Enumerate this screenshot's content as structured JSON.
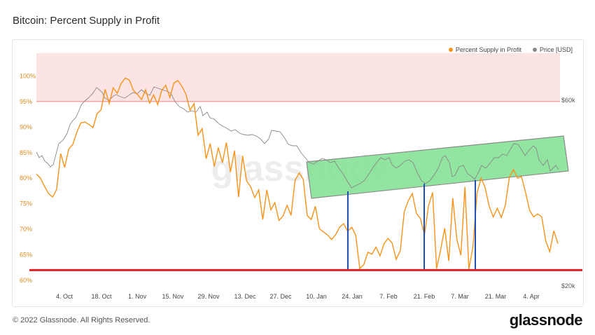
{
  "header": {
    "title": "Bitcoin: Percent Supply in Profit"
  },
  "footer": {
    "copyright": "© 2022 Glassnode. All Rights Reserved.",
    "brand": "glassnode"
  },
  "watermark": "glassnode",
  "colors": {
    "supply": "#f7931a",
    "price": "#888888",
    "top_band": "#fde4e4",
    "top_line": "#f08080",
    "floor_line": "#e02020",
    "channel": "#7fe08f",
    "channel_border": "#8a8a8a",
    "markers": "#1f4fb5"
  },
  "chart_data": {
    "type": "line",
    "title": "Bitcoin: Percent Supply in Profit",
    "series": [
      {
        "name": "Percent Supply in Profit",
        "axis": "left",
        "y": [
          80.8,
          80.0,
          78.4,
          77.0,
          76.3,
          77.8,
          84.8,
          82.1,
          85.7,
          86.6,
          89.0,
          90.8,
          91.0,
          90.5,
          89.9,
          92.6,
          93.4,
          97.4,
          94.6,
          97.7,
          96.6,
          98.6,
          99.6,
          99.2,
          97.2,
          96.4,
          95.4,
          97.3,
          94.7,
          96.3,
          94.4,
          97.2,
          98.2,
          95.8,
          98.6,
          99.1,
          98.0,
          96.4,
          93.3,
          94.6,
          88.4,
          89.7,
          83.8,
          86.8,
          82.3,
          86.0,
          83.0,
          87.0,
          81.2,
          85.4,
          76.3,
          84.4,
          79.5,
          78.3,
          76.2,
          77.7,
          71.9,
          77.7,
          73.8,
          75.2,
          71.7,
          72.6,
          74.7,
          72.7,
          79.6,
          81.0,
          79.8,
          72.7,
          71.9,
          74.5,
          70.1,
          69.5,
          68.9,
          68.0,
          68.9,
          70.4,
          71.1,
          69.6,
          70.4,
          68.8,
          62.3,
          63.1,
          65.5,
          65.1,
          66.5,
          64.8,
          67.2,
          68.2,
          67.3,
          64.1,
          65.8,
          73.4,
          75.6,
          77.0,
          73.1,
          72.1,
          68.9,
          74.6,
          77.2,
          62.3,
          66.0,
          70.2,
          63.8,
          76.1,
          68.1,
          64.9,
          78.3,
          62.2,
          66.6,
          77.1,
          80.0,
          78.2,
          74.5,
          72.4,
          74.1,
          72.3,
          74.7,
          80.2,
          81.7,
          80.0,
          80.3,
          77.2,
          73.7,
          72.4,
          73.0,
          72.4,
          67.7,
          65.6,
          69.7,
          67.2
        ]
      },
      {
        "name": "Price [USD]",
        "axis": "right",
        "unit_labels": [
          "$20k",
          "$60k"
        ]
      }
    ],
    "x_ticks": [
      "4. Oct",
      "18. Oct",
      "1. Nov",
      "15. Nov",
      "29. Nov",
      "13. Dec",
      "27. Dec",
      "10. Jan",
      "24. Jan",
      "7. Feb",
      "21. Feb",
      "7. Mar",
      "21. Mar",
      "4. Apr"
    ],
    "y_ticks": [
      "60%",
      "65%",
      "70%",
      "75%",
      "80%",
      "85%",
      "90%",
      "95%",
      "100%"
    ],
    "ylim": [
      60,
      105
    ],
    "right_ticks": [
      "$20k",
      "$60k"
    ],
    "annotations": {
      "top_band": [
        95,
        104.5
      ],
      "floor": 62.0,
      "channel": true,
      "markers_count": 3
    }
  }
}
